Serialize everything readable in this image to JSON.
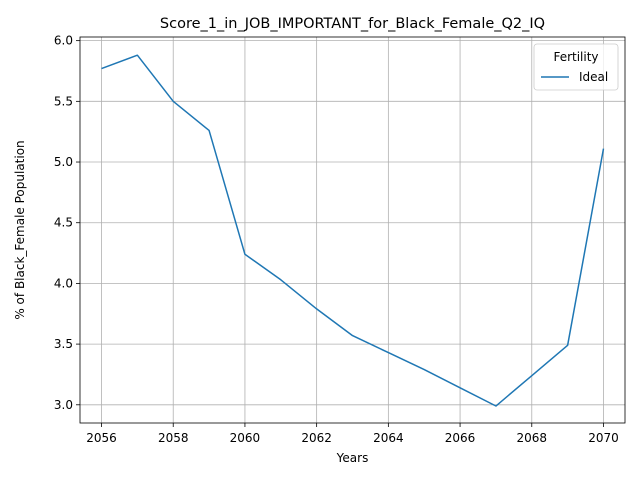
{
  "chart_data": {
    "type": "line",
    "title": "Score_1_in_JOB_IMPORTANT_for_Black_Female_Q2_IQ",
    "xlabel": "Years",
    "ylabel": "% of Black_Female Population",
    "xlim": [
      2055.4,
      2070.6
    ],
    "ylim": [
      2.85,
      6.03
    ],
    "xticks": [
      2056,
      2058,
      2060,
      2062,
      2064,
      2066,
      2068,
      2070
    ],
    "yticks": [
      3.0,
      3.5,
      4.0,
      4.5,
      5.0,
      5.5,
      6.0
    ],
    "grid": true,
    "legend": {
      "title": "Fertility",
      "placement": "upper right"
    },
    "series": [
      {
        "name": "Ideal",
        "color": "#1f77b4",
        "x": [
          2056,
          2057,
          2058,
          2059,
          2060,
          2061,
          2062,
          2063,
          2064,
          2065,
          2066,
          2067,
          2068,
          2069,
          2070
        ],
        "values": [
          5.77,
          5.88,
          5.5,
          5.26,
          4.24,
          4.03,
          3.79,
          3.57,
          3.43,
          3.29,
          3.14,
          2.99,
          3.24,
          3.49,
          5.11
        ]
      }
    ]
  }
}
